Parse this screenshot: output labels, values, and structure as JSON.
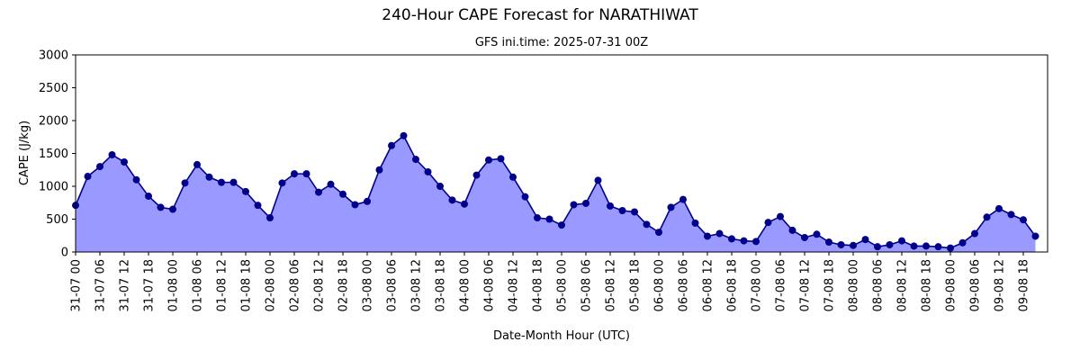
{
  "chart_data": {
    "type": "area",
    "title": "240-Hour CAPE Forecast for NARATHIWAT",
    "subtitle": "GFS ini.time: 2025-07-31 00Z",
    "xlabel": "Date-Month Hour (UTC)",
    "ylabel": "CAPE (J/kg)",
    "ylim": [
      0,
      3000
    ],
    "yticks": [
      0,
      500,
      1000,
      1500,
      2000,
      2500,
      3000
    ],
    "x_step_hours": 3,
    "x_range_hours": [
      0,
      240
    ],
    "xtick_labels": [
      "31-07 00",
      "31-07 06",
      "31-07 12",
      "31-07 18",
      "01-08 00",
      "01-08 06",
      "01-08 12",
      "01-08 18",
      "02-08 00",
      "02-08 06",
      "02-08 12",
      "02-08 18",
      "03-08 00",
      "03-08 06",
      "03-08 12",
      "03-08 18",
      "04-08 00",
      "04-08 06",
      "04-08 12",
      "04-08 18",
      "05-08 00",
      "05-08 06",
      "05-08 12",
      "05-08 18",
      "06-08 00",
      "06-08 06",
      "06-08 12",
      "06-08 18",
      "07-08 00",
      "07-08 06",
      "07-08 12",
      "07-08 18",
      "08-08 00",
      "08-08 06",
      "08-08 12",
      "08-08 18",
      "09-08 00",
      "09-08 06",
      "09-08 12",
      "09-08 18"
    ],
    "values": [
      710,
      1150,
      1300,
      1480,
      1370,
      1100,
      850,
      680,
      650,
      1050,
      1330,
      1140,
      1060,
      1060,
      920,
      710,
      520,
      1050,
      1190,
      1190,
      910,
      1030,
      880,
      720,
      770,
      1250,
      1620,
      1770,
      1410,
      1220,
      1000,
      790,
      730,
      1170,
      1400,
      1420,
      1140,
      840,
      520,
      500,
      410,
      720,
      740,
      1090,
      700,
      630,
      610,
      420,
      300,
      680,
      800,
      440,
      240,
      280,
      200,
      170,
      160,
      450,
      540,
      330,
      220,
      270,
      150,
      110,
      100,
      190,
      80,
      110,
      170,
      90,
      90,
      80,
      60,
      140,
      280,
      530,
      660,
      570,
      490,
      240
    ],
    "colors": {
      "fill": "#9999ff",
      "line": "#00008b",
      "marker": "#00008b"
    },
    "grid": false,
    "legend": "none"
  }
}
